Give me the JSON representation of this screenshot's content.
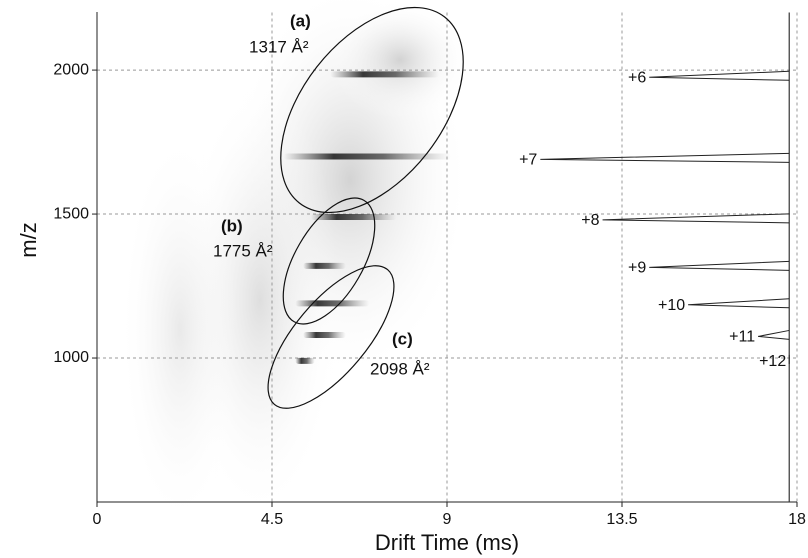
{
  "chart_data": {
    "type": "mobility-map",
    "x_label": "Drift Time (ms)",
    "y_label": "m/z",
    "xlim": [
      0,
      18
    ],
    "xticks": [
      0,
      4.5,
      9,
      13.5,
      18
    ],
    "ylim": [
      500,
      2200
    ],
    "yticks": [
      1000,
      1500,
      2000
    ],
    "grid": true,
    "streaks": [
      {
        "mz": 1985,
        "drift": [
          6.0,
          8.8
        ]
      },
      {
        "mz": 1700,
        "drift": [
          4.8,
          9.1
        ]
      },
      {
        "mz": 1490,
        "drift": [
          5.5,
          7.7
        ]
      },
      {
        "mz": 1320,
        "drift": [
          5.3,
          6.4
        ]
      },
      {
        "mz": 1190,
        "drift": [
          5.1,
          7.0
        ]
      },
      {
        "mz": 1080,
        "drift": [
          5.3,
          6.4
        ]
      },
      {
        "mz": 990,
        "drift": [
          5.1,
          5.6
        ]
      }
    ],
    "peaks": [
      {
        "label": "+6",
        "mz": 1975,
        "tip": 14.2
      },
      {
        "label": "+7",
        "mz": 1690,
        "tip": 11.4
      },
      {
        "label": "+8",
        "mz": 1480,
        "tip": 13.0
      },
      {
        "label": "+9",
        "mz": 1315,
        "tip": 14.2
      },
      {
        "label": "+10",
        "mz": 1185,
        "tip": 15.2
      },
      {
        "label": "+11",
        "mz": 1075,
        "tip": 17.0
      },
      {
        "label": "+12",
        "mz": 990,
        "tip": 17.8
      }
    ],
    "spectrum_baseline": 17.8,
    "annotations": [
      {
        "tag": "(a)",
        "ccs": "1317 Å²"
      },
      {
        "tag": "(b)",
        "ccs": "1775 Å²"
      },
      {
        "tag": "(c)",
        "ccs": "2098 Å²"
      }
    ]
  }
}
